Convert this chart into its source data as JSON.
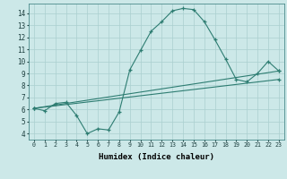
{
  "line1_x": [
    0,
    1,
    2,
    3,
    4,
    5,
    6,
    7,
    8,
    9,
    10,
    11,
    12,
    13,
    14,
    15,
    16,
    17,
    18,
    19,
    20,
    21,
    22,
    23
  ],
  "line1_y": [
    6.1,
    5.9,
    6.5,
    6.6,
    5.5,
    4.0,
    4.4,
    4.3,
    5.8,
    9.3,
    10.9,
    12.5,
    13.3,
    14.2,
    14.4,
    14.3,
    13.3,
    11.8,
    10.2,
    8.5,
    8.3,
    9.0,
    10.0,
    9.2
  ],
  "line2_x": [
    0,
    23
  ],
  "line2_y": [
    6.1,
    9.2
  ],
  "line3_x": [
    0,
    23
  ],
  "line3_y": [
    6.1,
    8.5
  ],
  "line_color": "#2e7d72",
  "bg_color": "#cce8e8",
  "grid_color": "#aacfcf",
  "xlabel": "Humidex (Indice chaleur)",
  "xlim": [
    -0.5,
    23.5
  ],
  "ylim": [
    3.5,
    14.8
  ],
  "xtick_labels": [
    "0",
    "1",
    "2",
    "3",
    "4",
    "5",
    "6",
    "7",
    "8",
    "9",
    "10",
    "11",
    "12",
    "13",
    "14",
    "15",
    "16",
    "17",
    "18",
    "19",
    "20",
    "21",
    "22",
    "23"
  ],
  "ytick_labels": [
    "4",
    "5",
    "6",
    "7",
    "8",
    "9",
    "10",
    "11",
    "12",
    "13",
    "14"
  ],
  "ytick_values": [
    4,
    5,
    6,
    7,
    8,
    9,
    10,
    11,
    12,
    13,
    14
  ]
}
